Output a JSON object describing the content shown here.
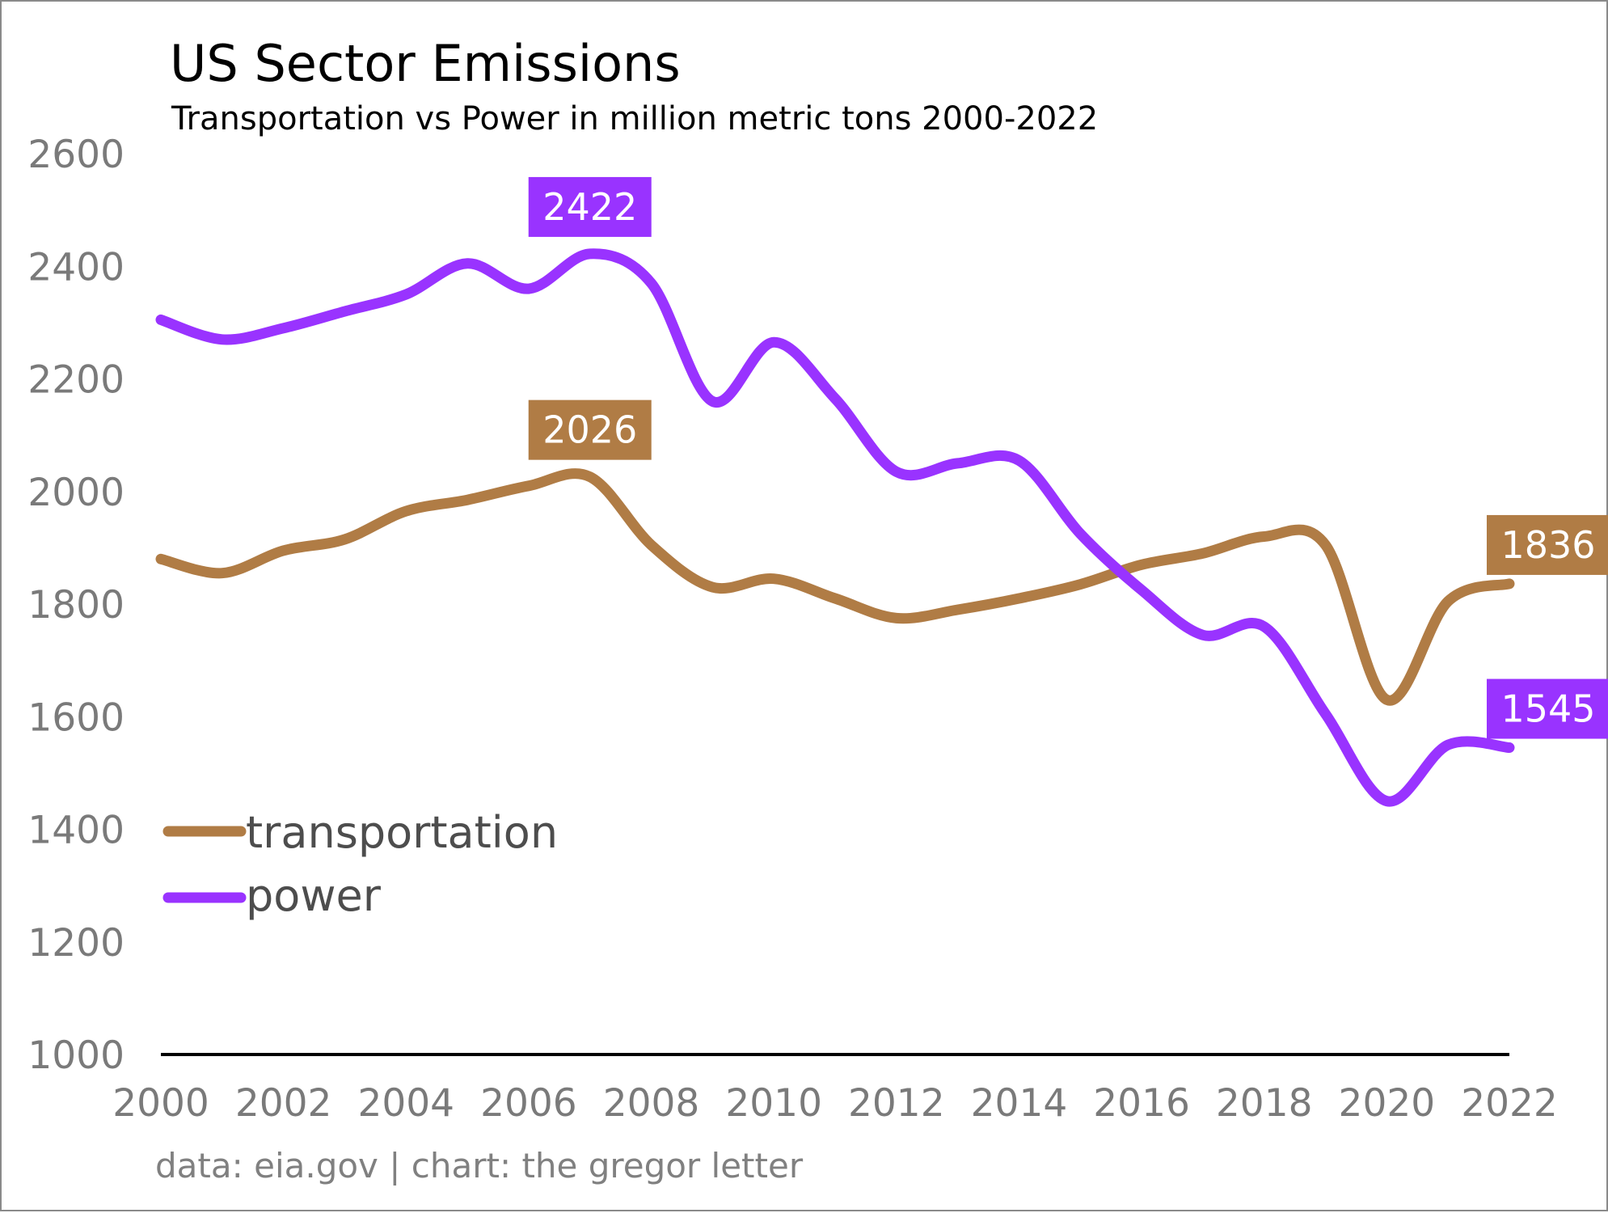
{
  "title": "US Sector Emissions",
  "subtitle": "Transportation vs Power in million metric tons 2000-2022",
  "source": "data: eia.gov | chart: the gregor letter",
  "colors": {
    "transportation": "#b07c45",
    "power": "#9933ff",
    "axis": "#000000",
    "tick": "#7a7a7a"
  },
  "chart_data": {
    "type": "line",
    "title": "US Sector Emissions",
    "subtitle": "Transportation vs Power in million metric tons 2000-2022",
    "xlabel": "",
    "ylabel": "",
    "x": [
      2000,
      2001,
      2002,
      2003,
      2004,
      2005,
      2006,
      2007,
      2008,
      2009,
      2010,
      2011,
      2012,
      2013,
      2014,
      2015,
      2016,
      2017,
      2018,
      2019,
      2020,
      2021,
      2022
    ],
    "xlim": [
      2000,
      2022
    ],
    "ylim": [
      1000,
      2600
    ],
    "x_ticks": [
      "2000",
      "2002",
      "2004",
      "2006",
      "2008",
      "2010",
      "2012",
      "2014",
      "2016",
      "2018",
      "2020",
      "2022"
    ],
    "y_ticks": [
      "1000",
      "1200",
      "1400",
      "1600",
      "1800",
      "2000",
      "2200",
      "2400",
      "2600"
    ],
    "grid": false,
    "legend_position": "lower-left",
    "series": [
      {
        "name": "transportation",
        "color": "#b07c45",
        "values": [
          1880,
          1855,
          1895,
          1915,
          1965,
          1985,
          2010,
          2026,
          1905,
          1830,
          1845,
          1810,
          1775,
          1790,
          1810,
          1835,
          1870,
          1890,
          1920,
          1905,
          1630,
          1805,
          1836
        ]
      },
      {
        "name": "power",
        "color": "#9933ff",
        "values": [
          2305,
          2270,
          2290,
          2320,
          2350,
          2405,
          2360,
          2422,
          2370,
          2160,
          2265,
          2165,
          2035,
          2050,
          2055,
          1925,
          1825,
          1745,
          1760,
          1605,
          1450,
          1550,
          1545
        ]
      }
    ],
    "annotations": [
      {
        "series": "power",
        "x": 2007,
        "text": "2422"
      },
      {
        "series": "transportation",
        "x": 2007,
        "text": "2026"
      },
      {
        "series": "transportation",
        "x": 2022,
        "text": "1836"
      },
      {
        "series": "power",
        "x": 2022,
        "text": "1545"
      }
    ]
  }
}
